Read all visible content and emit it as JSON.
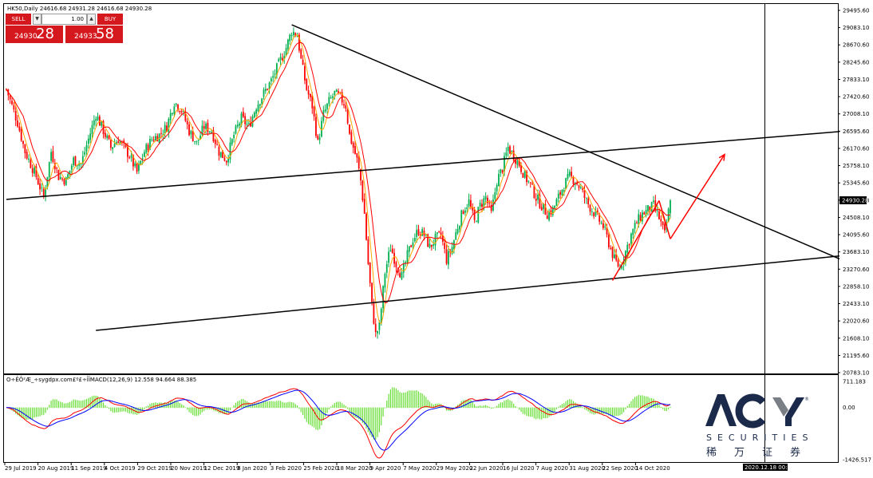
{
  "header": {
    "symbol_line": "HK50,Daily  24616.68 24931.28 24616.68 24930.28",
    "indicator_line": "O÷ÊÔ²Æ_÷sygdpx.com£º£÷ÎÏMACD(12,26,9) 12.558 94.664 88.385"
  },
  "trade_panel": {
    "sell_label": "SELL",
    "buy_label": "BUY",
    "lot": "1.00",
    "sell_price_small": "24930",
    "sell_price_big": "28",
    "buy_price_small": "24933",
    "buy_price_big": "58"
  },
  "logo": {
    "text": "ACY",
    "subtitle": "SECURITIES",
    "chinese": "稀万证券",
    "registered": "®"
  },
  "chart_data": [
    {
      "type": "candlestick",
      "title": "HK50,Daily",
      "ohlc_last": {
        "open": 24616.68,
        "high": 24931.28,
        "low": 24616.68,
        "close": 24930.28
      },
      "y_ticks": [
        "29495.60",
        "29083.10",
        "28670.60",
        "28245.60",
        "27833.10",
        "27420.60",
        "27008.10",
        "26595.60",
        "26170.60",
        "25758.10",
        "25345.60",
        "24930.28",
        "24508.10",
        "24095.60",
        "23683.10",
        "23270.60",
        "22858.10",
        "22433.10",
        "22020.60",
        "21608.10",
        "21195.60",
        "20783.10"
      ],
      "current_price_label": "24930.28",
      "ylim": [
        20700,
        29700
      ],
      "x_ticks": [
        "29 Jul 2019",
        "20 Aug 2019",
        "11 Sep 2019",
        "4 Oct 2019",
        "29 Oct 2019",
        "20 Nov 2019",
        "12 Dec 2019",
        "8 Jan 2020",
        "3 Feb 2020",
        "25 Feb 2020",
        "18 Mar 2020",
        "9 Apr 2020",
        "7 May 2020",
        "29 May 2020",
        "22 Jun 2020",
        "16 Jul 2020",
        "7 Aug 2020",
        "31 Aug 2020",
        "22 Sep 2020",
        "14 Oct 2020"
      ],
      "cursor_date_label": "2020.12.18 00:00",
      "close_path": [
        [
          0,
          27600
        ],
        [
          6,
          26800
        ],
        [
          10,
          26100
        ],
        [
          16,
          25500
        ],
        [
          20,
          25000
        ],
        [
          24,
          26100
        ],
        [
          28,
          25500
        ],
        [
          32,
          25400
        ],
        [
          36,
          25900
        ],
        [
          40,
          25800
        ],
        [
          44,
          26400
        ],
        [
          48,
          27000
        ],
        [
          52,
          26600
        ],
        [
          56,
          26200
        ],
        [
          60,
          26400
        ],
        [
          66,
          26000
        ],
        [
          70,
          25600
        ],
        [
          74,
          26100
        ],
        [
          78,
          26400
        ],
        [
          82,
          26500
        ],
        [
          86,
          26700
        ],
        [
          90,
          27300
        ],
        [
          94,
          27100
        ],
        [
          98,
          26600
        ],
        [
          102,
          26300
        ],
        [
          106,
          26700
        ],
        [
          110,
          26600
        ],
        [
          114,
          26100
        ],
        [
          118,
          25900
        ],
        [
          122,
          26500
        ],
        [
          126,
          26900
        ],
        [
          130,
          26700
        ],
        [
          134,
          27200
        ],
        [
          138,
          27500
        ],
        [
          142,
          27800
        ],
        [
          146,
          28200
        ],
        [
          150,
          28600
        ],
        [
          153,
          29000
        ],
        [
          156,
          28900
        ],
        [
          158,
          28300
        ],
        [
          161,
          27600
        ],
        [
          164,
          27200
        ],
        [
          167,
          26300
        ],
        [
          170,
          27000
        ],
        [
          173,
          27300
        ],
        [
          176,
          27500
        ],
        [
          179,
          27400
        ],
        [
          182,
          27200
        ],
        [
          184,
          26500
        ],
        [
          186,
          26200
        ],
        [
          188,
          25900
        ],
        [
          190,
          25400
        ],
        [
          192,
          24600
        ],
        [
          194,
          23400
        ],
        [
          196,
          22400
        ],
        [
          198,
          21700
        ],
        [
          200,
          21900
        ],
        [
          203,
          23200
        ],
        [
          206,
          23800
        ],
        [
          209,
          23400
        ],
        [
          212,
          23100
        ],
        [
          215,
          23600
        ],
        [
          218,
          24000
        ],
        [
          221,
          24200
        ],
        [
          224,
          24100
        ],
        [
          227,
          23800
        ],
        [
          230,
          24000
        ],
        [
          233,
          24100
        ],
        [
          236,
          23500
        ],
        [
          239,
          23800
        ],
        [
          242,
          24300
        ],
        [
          245,
          24700
        ],
        [
          248,
          24900
        ],
        [
          251,
          24400
        ],
        [
          254,
          24800
        ],
        [
          257,
          25000
        ],
        [
          260,
          24600
        ],
        [
          263,
          25400
        ],
        [
          266,
          25700
        ],
        [
          269,
          26200
        ],
        [
          272,
          26000
        ],
        [
          275,
          25800
        ],
        [
          278,
          25500
        ],
        [
          281,
          25300
        ],
        [
          284,
          25000
        ],
        [
          287,
          24800
        ],
        [
          290,
          24600
        ],
        [
          293,
          24700
        ],
        [
          296,
          25000
        ],
        [
          299,
          25300
        ],
        [
          302,
          25500
        ],
        [
          305,
          25400
        ],
        [
          308,
          25200
        ],
        [
          311,
          24900
        ],
        [
          314,
          24700
        ],
        [
          317,
          24500
        ],
        [
          320,
          24300
        ],
        [
          323,
          23900
        ],
        [
          326,
          23500
        ],
        [
          329,
          23300
        ],
        [
          332,
          23700
        ],
        [
          335,
          24100
        ],
        [
          338,
          24400
        ],
        [
          341,
          24600
        ],
        [
          344,
          24700
        ],
        [
          347,
          24800
        ],
        [
          350,
          24500
        ],
        [
          353,
          24100
        ],
        [
          356,
          24930
        ]
      ],
      "trendlines": [
        {
          "name": "descending-resistance",
          "color": "#000000",
          "from": [
            153,
            29150
          ],
          "to": [
            1052,
            23520
          ]
        },
        {
          "name": "upper-channel",
          "color": "#000000",
          "from": [
            0,
            24950
          ],
          "to": [
            1052,
            26580
          ]
        },
        {
          "name": "lower-support",
          "color": "#000000",
          "from": [
            48,
            21800
          ],
          "to": [
            1052,
            23590
          ]
        },
        {
          "name": "red-leg-1",
          "color": "#ff0000",
          "from": [
            325,
            23000
          ],
          "to": [
            350,
            24920
          ]
        },
        {
          "name": "red-leg-2",
          "color": "#ff0000",
          "from": [
            350,
            24920
          ],
          "to": [
            356,
            24000
          ]
        },
        {
          "name": "red-projection",
          "color": "#ff0000",
          "from": [
            356,
            24000
          ],
          "to": [
            908,
            26030
          ]
        }
      ]
    },
    {
      "type": "macd",
      "title": "MACD(12,26,9)",
      "values": {
        "macd": 12.558,
        "signal": 94.664,
        "histogram": 88.385
      },
      "y_ticks": [
        "711.183",
        "0.00",
        "-1426.517"
      ],
      "ylim": [
        -1426.517,
        711.183
      ]
    }
  ],
  "colors": {
    "bull_candle": "#00b050",
    "bear_candle": "#ff0000",
    "ma_red": "#ff0000",
    "ma_orange": "#ffa500",
    "macd_hist": "#66dd33",
    "macd_blue": "#0000ff",
    "macd_red": "#ff0000",
    "trade_red": "#d5181e",
    "logo_navy": "#1b2a4a"
  }
}
